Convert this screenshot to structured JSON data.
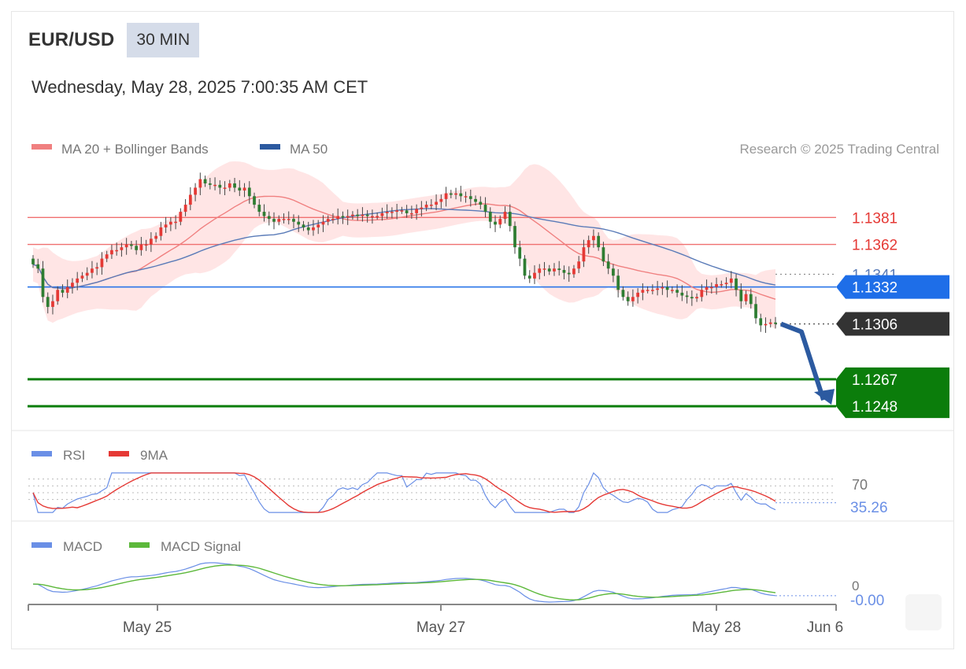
{
  "header": {
    "symbol": "EUR/USD",
    "timeframe": "30 MIN",
    "datetime": "Wednesday, May 28, 2025 7:00:35 AM CET"
  },
  "legend": {
    "ma20": "MA 20 + Bollinger Bands",
    "ma50": "MA 50",
    "rsi": "RSI",
    "rsi_ma": "9MA",
    "macd": "MACD",
    "macd_signal": "MACD Signal",
    "copyright": "Research © 2025 Trading Central"
  },
  "colors": {
    "resistance": "#f07070",
    "resistance_text": "#e53935",
    "pivot": "#1e6ee8",
    "current": "#333333",
    "support": "#0b7d0b",
    "ma20": "#f08080",
    "ma50": "#5a7bb8",
    "bollinger_fill": "#ffe0e0",
    "candle_up": "#e53935",
    "candle_down": "#2e7d32",
    "rsi": "#6a8fe6",
    "rsi_ma": "#e53935",
    "macd": "#6a8fe6",
    "macd_signal": "#5cb83a",
    "arrow": "#2c5aa0"
  },
  "chart_data": {
    "type": "candlestick",
    "x_ticks": [
      "May 25",
      "May 27",
      "May 28",
      "Jun 6"
    ],
    "price_range": [
      1.1232,
      1.1415
    ],
    "levels": {
      "resistance": [
        1.1381,
        1.1362
      ],
      "last_ma50": 1.1341,
      "pivot": 1.1332,
      "current": 1.1306,
      "support": [
        1.1267,
        1.1248
      ]
    },
    "level_labels": {
      "r1": "1.1381",
      "r2": "1.1362",
      "ma50": "1.1341",
      "pivot": "1.1332",
      "current": "1.1306",
      "s1": "1.1267",
      "s2": "1.1248"
    },
    "closes": [
      1.1348,
      1.1345,
      1.1325,
      1.1318,
      1.1322,
      1.133,
      1.1328,
      1.1332,
      1.1335,
      1.1338,
      1.134,
      1.1342,
      1.1345,
      1.1346,
      1.1352,
      1.1355,
      1.1358,
      1.1358,
      1.136,
      1.1362,
      1.1361,
      1.1358,
      1.1362,
      1.1362,
      1.1366,
      1.1368,
      1.1374,
      1.1376,
      1.1378,
      1.1378,
      1.1385,
      1.139,
      1.1397,
      1.1402,
      1.1408,
      1.1405,
      1.1404,
      1.1404,
      1.1402,
      1.1402,
      1.1405,
      1.1402,
      1.14,
      1.1402,
      1.1396,
      1.139,
      1.1385,
      1.1382,
      1.138,
      1.1378,
      1.138,
      1.138,
      1.138,
      1.1378,
      1.1376,
      1.1374,
      1.1372,
      1.1374,
      1.1376,
      1.1378,
      1.138,
      1.138,
      1.1382,
      1.1381,
      1.1382,
      1.1383,
      1.1382,
      1.1383,
      1.1382,
      1.1382,
      1.1382,
      1.1384,
      1.1385,
      1.1385,
      1.1386,
      1.1386,
      1.1384,
      1.1384,
      1.1387,
      1.1388,
      1.139,
      1.139,
      1.1392,
      1.1394,
      1.1398,
      1.1397,
      1.1398,
      1.1396,
      1.1396,
      1.1394,
      1.1392,
      1.139,
      1.1385,
      1.1378,
      1.1376,
      1.138,
      1.1385,
      1.1375,
      1.136,
      1.1352,
      1.134,
      1.1338,
      1.1342,
      1.1345,
      1.1345,
      1.1343,
      1.1345,
      1.1344,
      1.1342,
      1.1341,
      1.1345,
      1.135,
      1.136,
      1.1365,
      1.1368,
      1.136,
      1.135,
      1.1345,
      1.134,
      1.133,
      1.1325,
      1.1322,
      1.1325,
      1.1328,
      1.133,
      1.133,
      1.133,
      1.1331,
      1.1332,
      1.133,
      1.133,
      1.1328,
      1.1326,
      1.1325,
      1.1324,
      1.1325,
      1.133,
      1.1332,
      1.1332,
      1.1334,
      1.1334,
      1.1335,
      1.1338,
      1.133,
      1.1322,
      1.1327,
      1.132,
      1.131,
      1.1305,
      1.1306,
      1.1307,
      1.1306
    ],
    "rsi": {
      "range": [
        20,
        80
      ],
      "level": 70,
      "last": 35.26,
      "last_label": "35.26",
      "level_label": "70"
    },
    "macd": {
      "zero_label": "0",
      "last": -0.0,
      "last_label": "-0.00"
    }
  }
}
